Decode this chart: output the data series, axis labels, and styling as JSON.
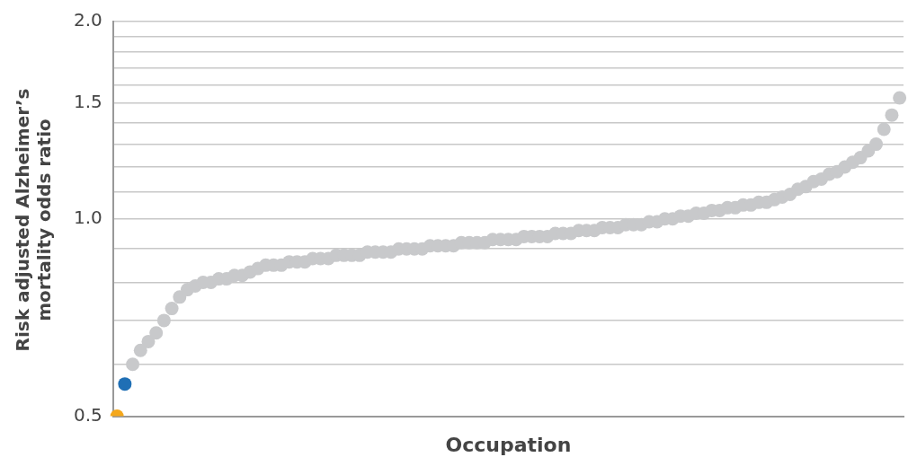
{
  "chart_data": {
    "type": "scatter",
    "xlabel": "Occupation",
    "ylabel": "Risk adjusted Alzheimer’s mortality odds ratio",
    "categories": [
      null,
      null,
      null,
      null,
      null,
      null,
      null,
      null,
      null,
      null,
      null,
      null,
      null,
      null,
      null,
      null,
      null,
      null,
      null,
      null,
      null,
      null,
      null,
      null,
      null,
      null,
      null,
      null,
      null,
      null,
      null,
      null,
      null,
      null,
      null,
      null,
      null,
      null,
      null,
      null,
      null,
      null,
      null,
      null,
      null,
      null,
      null,
      null,
      null,
      null,
      null,
      null,
      null,
      null,
      null,
      null,
      null,
      null,
      null,
      null,
      null,
      null,
      null,
      null,
      null,
      null,
      null,
      null,
      null,
      null,
      null,
      null,
      null,
      null,
      null,
      null,
      null,
      null,
      null,
      null,
      null,
      null,
      null,
      null,
      null,
      null,
      null,
      null,
      null,
      null,
      null,
      null,
      null,
      null,
      null,
      null,
      null,
      null,
      null,
      null,
      null
    ],
    "series": [
      {
        "color": "#f5a81c",
        "values": [
          0.5,
          null,
          null,
          null,
          null,
          null,
          null,
          null,
          null,
          null,
          null,
          null,
          null,
          null,
          null,
          null,
          null,
          null,
          null,
          null,
          null,
          null,
          null,
          null,
          null,
          null,
          null,
          null,
          null,
          null,
          null,
          null,
          null,
          null,
          null,
          null,
          null,
          null,
          null,
          null,
          null,
          null,
          null,
          null,
          null,
          null,
          null,
          null,
          null,
          null,
          null,
          null,
          null,
          null,
          null,
          null,
          null,
          null,
          null,
          null,
          null,
          null,
          null,
          null,
          null,
          null,
          null,
          null,
          null,
          null,
          null,
          null,
          null,
          null,
          null,
          null,
          null,
          null,
          null,
          null,
          null,
          null,
          null,
          null,
          null,
          null,
          null,
          null,
          null,
          null,
          null,
          null,
          null,
          null,
          null,
          null,
          null,
          null,
          null,
          null,
          null
        ]
      },
      {
        "color": "#1f6fb5",
        "values": [
          null,
          0.56,
          null,
          null,
          null,
          null,
          null,
          null,
          null,
          null,
          null,
          null,
          null,
          null,
          null,
          null,
          null,
          null,
          null,
          null,
          null,
          null,
          null,
          null,
          null,
          null,
          null,
          null,
          null,
          null,
          null,
          null,
          null,
          null,
          null,
          null,
          null,
          null,
          null,
          null,
          null,
          null,
          null,
          null,
          null,
          null,
          null,
          null,
          null,
          null,
          null,
          null,
          null,
          null,
          null,
          null,
          null,
          null,
          null,
          null,
          null,
          null,
          null,
          null,
          null,
          null,
          null,
          null,
          null,
          null,
          null,
          null,
          null,
          null,
          null,
          null,
          null,
          null,
          null,
          null,
          null,
          null,
          null,
          null,
          null,
          null,
          null,
          null,
          null,
          null,
          null,
          null,
          null,
          null,
          null,
          null,
          null,
          null,
          null,
          null,
          null
        ]
      },
      {
        "color": "#c8c9cb",
        "values": [
          null,
          null,
          0.6,
          0.63,
          0.65,
          0.67,
          0.7,
          0.73,
          0.76,
          0.78,
          0.79,
          0.8,
          0.8,
          0.81,
          0.81,
          0.82,
          0.82,
          0.83,
          0.84,
          0.85,
          0.85,
          0.85,
          0.86,
          0.86,
          0.86,
          0.87,
          0.87,
          0.87,
          0.88,
          0.88,
          0.88,
          0.88,
          0.89,
          0.89,
          0.89,
          0.89,
          0.9,
          0.9,
          0.9,
          0.9,
          0.91,
          0.91,
          0.91,
          0.91,
          0.92,
          0.92,
          0.92,
          0.92,
          0.93,
          0.93,
          0.93,
          0.93,
          0.94,
          0.94,
          0.94,
          0.94,
          0.95,
          0.95,
          0.95,
          0.96,
          0.96,
          0.96,
          0.97,
          0.97,
          0.97,
          0.98,
          0.98,
          0.98,
          0.99,
          0.99,
          1.0,
          1.0,
          1.01,
          1.01,
          1.02,
          1.02,
          1.03,
          1.03,
          1.04,
          1.04,
          1.05,
          1.05,
          1.06,
          1.06,
          1.07,
          1.08,
          1.09,
          1.11,
          1.12,
          1.14,
          1.15,
          1.17,
          1.18,
          1.2,
          1.22,
          1.24,
          1.27,
          1.3,
          1.37,
          1.44,
          1.53
        ]
      }
    ],
    "ylim": [
      0.5,
      2.0
    ],
    "yticks": [
      0.5,
      {
        "value": 0.6,
        "label": null
      },
      {
        "value": 0.7,
        "label": null
      },
      {
        "value": 0.8,
        "label": null
      },
      {
        "value": 0.9,
        "label": null
      },
      {
        "value": 1,
        "label": "1.0"
      },
      {
        "value": 1.1,
        "label": null
      },
      {
        "value": 1.2,
        "label": null
      },
      {
        "value": 1.3,
        "label": null
      },
      {
        "value": 1.4,
        "label": null
      },
      1.5,
      {
        "value": 1.6,
        "label": null
      },
      {
        "value": 1.7,
        "label": null
      },
      {
        "value": 1.8,
        "label": null
      },
      {
        "value": 1.9,
        "label": null
      },
      {
        "value": 2,
        "label": "2.0"
      }
    ],
    "log": true,
    "grid": "y",
    "tick_labels": "y",
    "marker": "circle"
  }
}
